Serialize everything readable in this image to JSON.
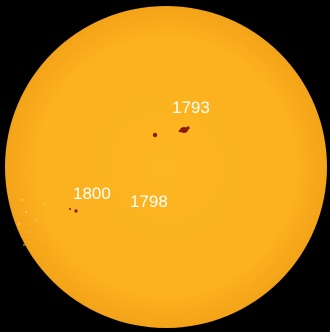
{
  "colors": {
    "background": "#000000",
    "sun_disk": "#fdb31f",
    "sun_limb": "#f4a51a",
    "sunspot": "#8b1a08",
    "label_text": "#ffffff"
  },
  "active_regions": [
    {
      "label": "1793"
    },
    {
      "label": "1800"
    },
    {
      "label": "1798"
    }
  ]
}
